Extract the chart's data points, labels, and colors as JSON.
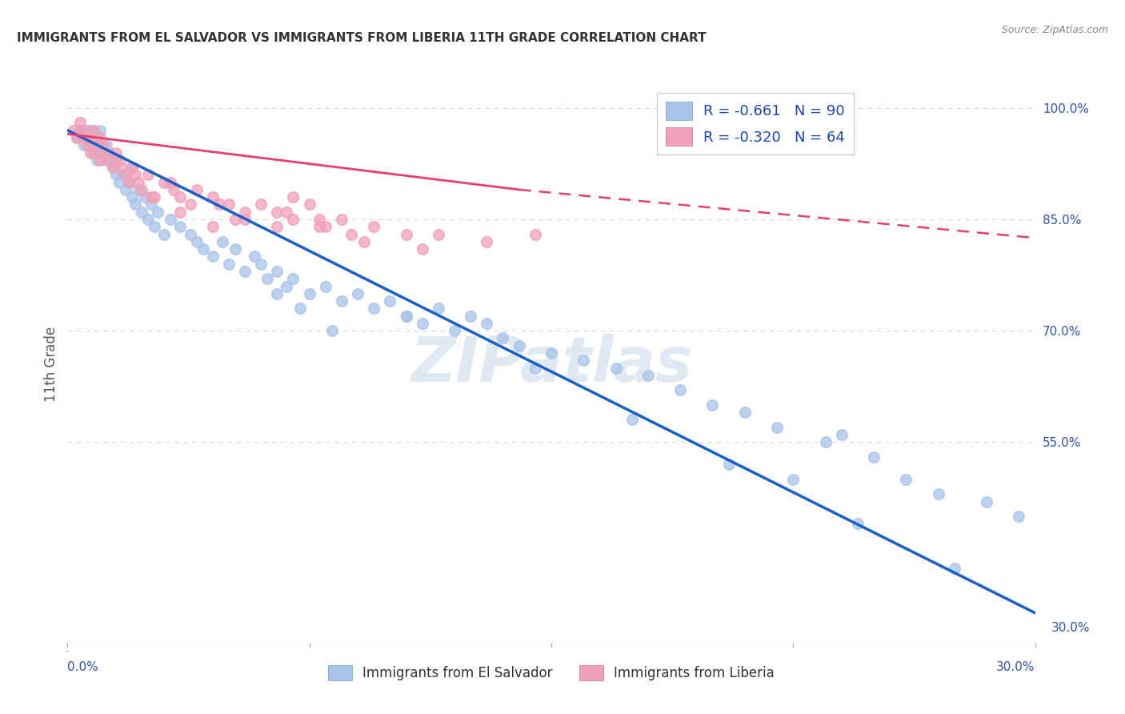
{
  "title": "IMMIGRANTS FROM EL SALVADOR VS IMMIGRANTS FROM LIBERIA 11TH GRADE CORRELATION CHART",
  "source": "Source: ZipAtlas.com",
  "ylabel": "11th Grade",
  "legend_entry1": "R = -0.661   N = 90",
  "legend_entry2": "R = -0.320   N = 64",
  "legend_label1": "Immigrants from El Salvador",
  "legend_label2": "Immigrants from Liberia",
  "blue_color": "#a8c4e8",
  "pink_color": "#f0a0b8",
  "blue_line_color": "#1a5fc8",
  "pink_line_color": "#e8406a",
  "watermark": "ZIPatlas",
  "background_color": "#ffffff",
  "grid_color": "#d8d8d8",
  "blue_scatter_x": [
    0.3,
    0.4,
    0.5,
    0.5,
    0.6,
    0.6,
    0.7,
    0.7,
    0.8,
    0.9,
    0.9,
    1.0,
    1.0,
    1.1,
    1.2,
    1.2,
    1.3,
    1.4,
    1.5,
    1.5,
    1.6,
    1.7,
    1.8,
    1.9,
    2.0,
    2.0,
    2.1,
    2.2,
    2.3,
    2.4,
    2.5,
    2.6,
    2.7,
    2.8,
    3.0,
    3.2,
    3.5,
    3.8,
    4.0,
    4.2,
    4.5,
    4.8,
    5.0,
    5.2,
    5.5,
    5.8,
    6.0,
    6.2,
    6.5,
    6.8,
    7.0,
    7.5,
    8.0,
    8.5,
    9.0,
    9.5,
    10.0,
    10.5,
    11.0,
    11.5,
    12.0,
    12.5,
    13.0,
    13.5,
    14.0,
    15.0,
    16.0,
    17.0,
    18.0,
    19.0,
    20.0,
    21.0,
    22.0,
    23.5,
    24.0,
    25.0,
    26.0,
    27.0,
    28.5,
    29.5,
    6.5,
    7.2,
    8.2,
    10.5,
    14.5,
    17.5,
    20.5,
    22.5,
    24.5,
    27.5
  ],
  "blue_scatter_y": [
    96,
    97,
    95,
    97,
    96,
    97,
    96,
    97,
    94,
    93,
    96,
    95,
    97,
    94,
    95,
    93,
    94,
    92,
    91,
    93,
    90,
    91,
    89,
    90,
    88,
    92,
    87,
    89,
    86,
    88,
    85,
    87,
    84,
    86,
    83,
    85,
    84,
    83,
    82,
    81,
    80,
    82,
    79,
    81,
    78,
    80,
    79,
    77,
    78,
    76,
    77,
    75,
    76,
    74,
    75,
    73,
    74,
    72,
    71,
    73,
    70,
    72,
    71,
    69,
    68,
    67,
    66,
    65,
    64,
    62,
    60,
    59,
    57,
    55,
    56,
    53,
    50,
    48,
    47,
    45,
    75,
    73,
    70,
    72,
    65,
    58,
    52,
    50,
    44,
    38
  ],
  "pink_scatter_x": [
    0.2,
    0.3,
    0.4,
    0.4,
    0.5,
    0.5,
    0.6,
    0.6,
    0.7,
    0.7,
    0.8,
    0.8,
    0.9,
    1.0,
    1.0,
    1.1,
    1.2,
    1.3,
    1.4,
    1.5,
    1.6,
    1.7,
    1.8,
    1.9,
    2.0,
    2.1,
    2.2,
    2.3,
    2.5,
    2.7,
    3.0,
    3.3,
    3.5,
    3.8,
    4.0,
    4.5,
    5.0,
    5.5,
    6.0,
    6.5,
    7.0,
    7.5,
    8.0,
    8.5,
    9.5,
    10.5,
    11.5,
    13.0,
    14.5,
    7.0,
    5.5,
    6.8,
    7.8,
    8.8,
    3.5,
    6.5,
    7.8,
    9.2,
    11.0,
    3.2,
    4.7,
    2.6,
    5.2,
    4.5
  ],
  "pink_scatter_y": [
    97,
    96,
    97,
    98,
    96,
    97,
    95,
    96,
    94,
    96,
    95,
    97,
    94,
    96,
    93,
    95,
    94,
    93,
    92,
    94,
    93,
    92,
    91,
    90,
    92,
    91,
    90,
    89,
    91,
    88,
    90,
    89,
    88,
    87,
    89,
    88,
    87,
    86,
    87,
    86,
    85,
    87,
    84,
    85,
    84,
    83,
    83,
    82,
    83,
    88,
    85,
    86,
    84,
    83,
    86,
    84,
    85,
    82,
    81,
    90,
    87,
    88,
    85,
    84
  ],
  "blue_line_x0": 0.0,
  "blue_line_y0": 97.0,
  "blue_line_x1": 30.0,
  "blue_line_y1": 32.0,
  "pink_line_x0": 0.0,
  "pink_line_y0": 96.5,
  "pink_line_x1": 30.0,
  "pink_line_y1": 82.5,
  "pink_dash_x0": 14.0,
  "pink_dash_y0": 89.0,
  "pink_dash_x1": 30.0,
  "pink_dash_y1": 82.5,
  "xlim_min": 0,
  "xlim_max": 30,
  "ylim_min": 28,
  "ylim_max": 103,
  "ytick_positions": [
    100,
    85,
    70,
    55
  ],
  "ytick_labels": [
    "100.0%",
    "85.0%",
    "70.0%",
    "55.0%"
  ],
  "ytick_bottom": 30,
  "ytick_bottom_label": "30.0%"
}
